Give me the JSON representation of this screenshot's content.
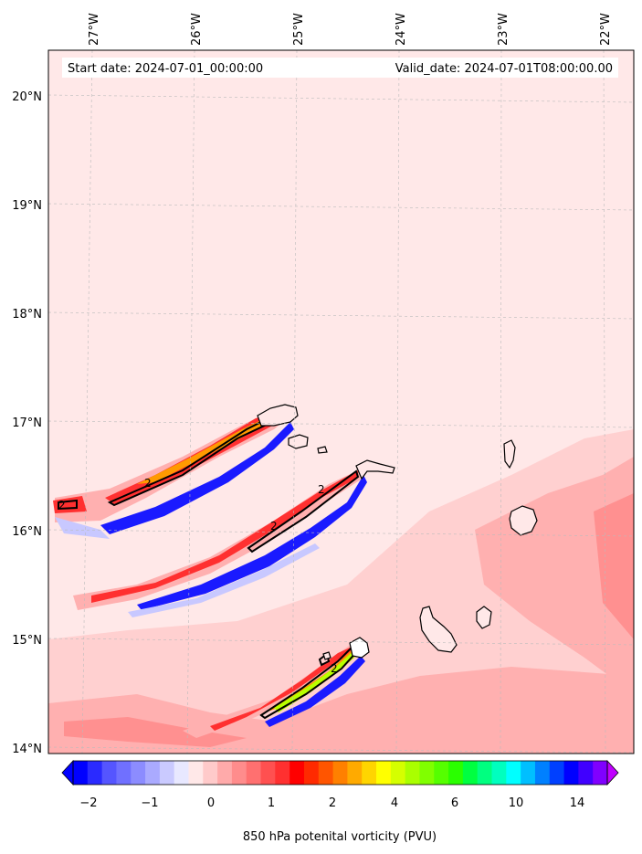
{
  "map": {
    "start_label": "Start date: 2024-07-01_00:00:00",
    "valid_label": "Valid_date: 2024-07-01T08:00:00.00",
    "lon_ticks": [
      "27°W",
      "26°W",
      "25°W",
      "24°W",
      "23°W",
      "22°W"
    ],
    "lat_ticks": [
      "20°N",
      "19°N",
      "18°N",
      "17°N",
      "16°N",
      "15°N",
      "14°N"
    ],
    "contour_labels": [
      "2",
      "2",
      "2",
      "2",
      "2"
    ],
    "colors": {
      "background": "#ffe8e8",
      "light_pink": "#ffd0d0",
      "mid_pink": "#ffb0b0",
      "red": "#ff3030",
      "orange": "#ff9a00",
      "yellow_green": "#b8ff00",
      "blue": "#1a1aff",
      "light_blue": "#c8c8ff",
      "coastline": "#000000"
    }
  },
  "colorbar": {
    "title": "850 hPa potenital vorticity (PVU)",
    "ticks": [
      "−2",
      "−1",
      "0",
      "1",
      "2",
      "4",
      "6",
      "10",
      "14"
    ],
    "levels": [
      "#0000ff",
      "#2a2aff",
      "#5555ff",
      "#7070ff",
      "#8c8cff",
      "#aaaaff",
      "#cacaff",
      "#e8e8ff",
      "#ffe8e8",
      "#ffcaca",
      "#ffaaaa",
      "#ff8c8c",
      "#ff7070",
      "#ff5050",
      "#ff3030",
      "#ff0000",
      "#ff2a00",
      "#ff5500",
      "#ff8000",
      "#ffaa00",
      "#ffd500",
      "#ffff00",
      "#d5ff00",
      "#aaff00",
      "#80ff00",
      "#55ff00",
      "#2aff00",
      "#00ff40",
      "#00ff80",
      "#00ffbf",
      "#00ffff",
      "#00bfff",
      "#0080ff",
      "#0040ff",
      "#0000ff",
      "#4000ff",
      "#8000ff"
    ],
    "extend_low": "#0000ff",
    "extend_high": "#c000ff"
  }
}
